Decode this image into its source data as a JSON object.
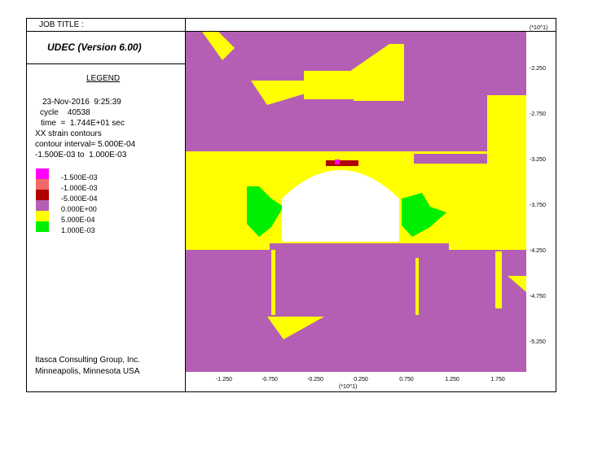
{
  "chart_data": {
    "type": "heatmap",
    "job_title_label": "JOB TITLE :",
    "software": "UDEC (Version 6.00)",
    "legend": {
      "title": "LEGEND",
      "date": "23-Nov-2016  9:25:39",
      "cycle": "cycle    40538",
      "time": "time  =  1.744E+01 sec",
      "variable": "XX strain contours",
      "contour_interval": "contour interval= 5.000E-04",
      "range": "-1.500E-03 to  1.000E-03",
      "levels": [
        {
          "value": "-1.500E-03",
          "color": "#ff00ff"
        },
        {
          "value": "-1.000E-03",
          "color": "#ef6a6a"
        },
        {
          "value": "-5.000E-04",
          "color": "#b00000"
        },
        {
          "value": "0.000E+00",
          "color": "#b45fb4"
        },
        {
          "value": "5.000E-04",
          "color": "#ffff00"
        },
        {
          "value": "1.000E-03",
          "color": "#00ee00"
        }
      ]
    },
    "company": [
      "Itasca Consulting Group, Inc.",
      "Minneapolis, Minnesota  USA"
    ],
    "x_ticks": [
      "-1.250",
      "-0.750",
      "-0.250",
      "0.250",
      "0.750",
      "1.250",
      "1.750"
    ],
    "y_ticks": [
      "-2.250",
      "-2.750",
      "-3.250",
      "-3.750",
      "-4.250",
      "-4.750",
      "-5.250"
    ],
    "x_scale": "(*10^1)",
    "y_scale": "(*10^1)"
  }
}
